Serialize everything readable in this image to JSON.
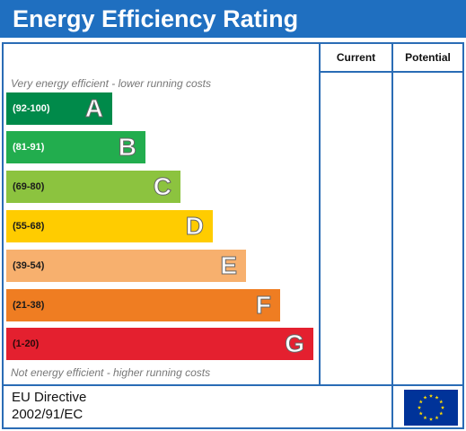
{
  "title": "Energy Efficiency Rating",
  "columns": {
    "current": "Current",
    "potential": "Potential"
  },
  "captions": {
    "top": "Very energy efficient - lower running costs",
    "bottom": "Not energy efficient - higher running costs"
  },
  "bands": [
    {
      "range": "(92-100)",
      "letter": "A",
      "color": "#008a4a"
    },
    {
      "range": "(81-91)",
      "letter": "B",
      "color": "#22ad4e"
    },
    {
      "range": "(69-80)",
      "letter": "C",
      "color": "#8cc33f"
    },
    {
      "range": "(55-68)",
      "letter": "D",
      "color": "#ffcc00"
    },
    {
      "range": "(39-54)",
      "letter": "E",
      "color": "#f7b06e"
    },
    {
      "range": "(21-38)",
      "letter": "F",
      "color": "#ef7d22"
    },
    {
      "range": "(1-20)",
      "letter": "G",
      "color": "#e4202f"
    }
  ],
  "footer": {
    "line1": "EU Directive",
    "line2": "2002/91/EC",
    "flag_icon": "eu-flag-icon"
  },
  "colors": {
    "title_bar": "#1f6fc0",
    "border": "#2a6cb5",
    "flag_blue": "#003399",
    "flag_stars": "#ffdd00"
  }
}
